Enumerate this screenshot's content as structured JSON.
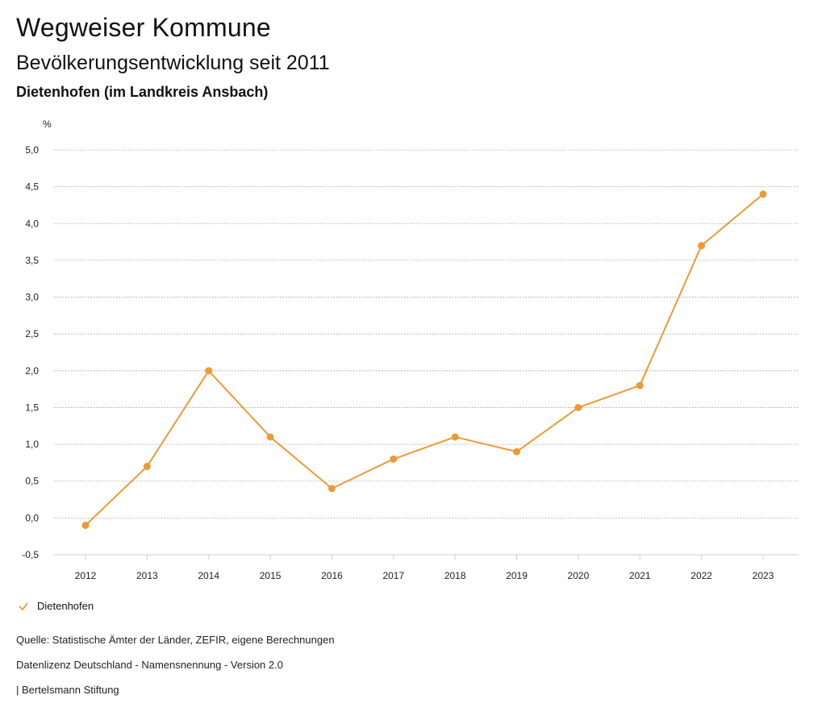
{
  "header": {
    "title": "Wegweiser Kommune",
    "subtitle": "Bevölkerungsentwicklung seit 2011",
    "region": "Dietenhofen (im Landkreis Ansbach)"
  },
  "chart_data": {
    "type": "line",
    "ylabel": "%",
    "x": [
      "2012",
      "2013",
      "2014",
      "2015",
      "2016",
      "2017",
      "2018",
      "2019",
      "2020",
      "2021",
      "2022",
      "2023"
    ],
    "series": [
      {
        "name": "Dietenhofen",
        "values": [
          -0.1,
          0.7,
          2.0,
          1.1,
          0.4,
          0.8,
          1.1,
          0.9,
          1.5,
          1.8,
          3.7,
          4.4
        ]
      }
    ],
    "ylim": [
      -0.5,
      5.0
    ],
    "yticks": [
      "-0,5",
      "0,0",
      "0,5",
      "1,0",
      "1,5",
      "2,0",
      "2,5",
      "3,0",
      "3,5",
      "4,0",
      "4,5",
      "5,0"
    ],
    "ytick_values": [
      -0.5,
      0,
      0.5,
      1.0,
      1.5,
      2.0,
      2.5,
      3.0,
      3.5,
      4.0,
      4.5,
      5.0
    ],
    "grid": true,
    "legend_position": "bottom-left",
    "color": "#ec9a35"
  },
  "footer": {
    "source": "Quelle: Statistische Ämter der Länder, ZEFIR, eigene Berechnungen",
    "license": "Datenlizenz Deutschland - Namensnennung - Version 2.0",
    "publisher": "| Bertelsmann Stiftung"
  }
}
